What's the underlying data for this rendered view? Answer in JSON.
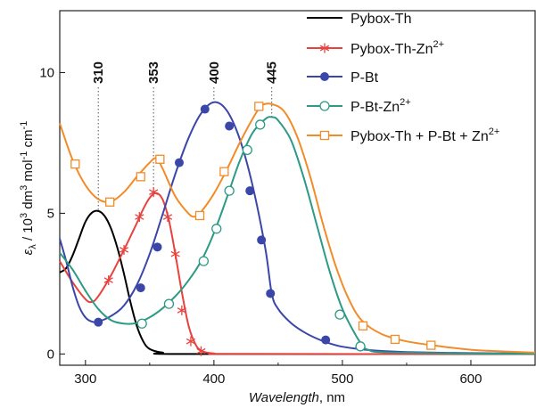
{
  "chart_data": {
    "type": "line",
    "xlabel_italic": "Wavelength",
    "xlabel_unit": ", nm",
    "ylabel": {
      "symbol": "ε",
      "sub": "λ",
      "pre": " / 10",
      "e1": "3",
      "mid1": " dm",
      "e2": "3",
      "mid2": " mol",
      "e3": "-1",
      "mid3": " cm",
      "e4": "-1"
    },
    "xlim": [
      280,
      650
    ],
    "ylim": [
      -0.4,
      12.2
    ],
    "xticks": [
      300,
      400,
      500,
      600
    ],
    "xtick_labels": [
      "300",
      "400",
      "500",
      "600"
    ],
    "yticks": [
      0,
      5,
      10
    ],
    "ytick_labels": [
      "0",
      "5",
      "10"
    ],
    "legend_position": "top-right",
    "peak_annotations": [
      {
        "x": 310,
        "y": 5.1,
        "label": "310"
      },
      {
        "x": 353,
        "y": 5.75,
        "label": "353"
      },
      {
        "x": 400,
        "y": 8.95,
        "label": "400"
      },
      {
        "x": 445,
        "y": 8.45,
        "label": "445"
      }
    ],
    "series": [
      {
        "name": "Pybox-Th",
        "name_sup": "",
        "name_tail": "",
        "color": "#000000",
        "marker": "none",
        "points": [
          [
            280,
            2.9
          ],
          [
            285,
            3.05
          ],
          [
            290,
            3.5
          ],
          [
            295,
            4.1
          ],
          [
            300,
            4.7
          ],
          [
            305,
            5.02
          ],
          [
            310,
            5.08
          ],
          [
            315,
            4.9
          ],
          [
            320,
            4.45
          ],
          [
            325,
            3.75
          ],
          [
            330,
            2.85
          ],
          [
            335,
            1.85
          ],
          [
            340,
            1.0
          ],
          [
            345,
            0.45
          ],
          [
            350,
            0.18
          ],
          [
            360,
            0.05
          ],
          [
            380,
            0.0
          ],
          [
            650,
            0.0
          ]
        ],
        "markers": []
      },
      {
        "name": "Pybox-Th-Zn",
        "name_sup": "2+",
        "name_tail": "",
        "color": "#e8423e",
        "marker": "star",
        "points": [
          [
            280,
            3.3
          ],
          [
            290,
            2.55
          ],
          [
            300,
            1.95
          ],
          [
            305,
            1.85
          ],
          [
            310,
            2.05
          ],
          [
            320,
            2.8
          ],
          [
            330,
            3.7
          ],
          [
            340,
            4.65
          ],
          [
            345,
            5.15
          ],
          [
            350,
            5.55
          ],
          [
            355,
            5.72
          ],
          [
            360,
            5.5
          ],
          [
            365,
            4.75
          ],
          [
            370,
            3.55
          ],
          [
            375,
            2.2
          ],
          [
            380,
            1.05
          ],
          [
            385,
            0.4
          ],
          [
            390,
            0.12
          ],
          [
            400,
            0.02
          ],
          [
            420,
            0.0
          ],
          [
            650,
            0.0
          ]
        ],
        "markers": [
          [
            318,
            2.62
          ],
          [
            330,
            3.7
          ],
          [
            342,
            4.87
          ],
          [
            353,
            5.75
          ],
          [
            364,
            4.87
          ],
          [
            370,
            3.55
          ],
          [
            375,
            1.55
          ],
          [
            382,
            0.45
          ],
          [
            390,
            0.1
          ]
        ]
      },
      {
        "name": "P-Bt",
        "name_sup": "",
        "name_tail": "",
        "color": "#3a46a8",
        "marker": "filled-circle",
        "points": [
          [
            280,
            4.1
          ],
          [
            285,
            3.3
          ],
          [
            290,
            2.4
          ],
          [
            295,
            1.7
          ],
          [
            300,
            1.3
          ],
          [
            305,
            1.15
          ],
          [
            310,
            1.15
          ],
          [
            320,
            1.35
          ],
          [
            330,
            1.72
          ],
          [
            340,
            2.45
          ],
          [
            350,
            3.55
          ],
          [
            360,
            4.95
          ],
          [
            370,
            6.4
          ],
          [
            380,
            7.65
          ],
          [
            390,
            8.55
          ],
          [
            400,
            8.95
          ],
          [
            410,
            8.65
          ],
          [
            420,
            7.65
          ],
          [
            430,
            6.0
          ],
          [
            440,
            3.75
          ],
          [
            445,
            2.15
          ],
          [
            450,
            1.6
          ],
          [
            460,
            1.1
          ],
          [
            470,
            0.78
          ],
          [
            480,
            0.55
          ],
          [
            490,
            0.38
          ],
          [
            500,
            0.26
          ],
          [
            520,
            0.14
          ],
          [
            550,
            0.07
          ],
          [
            600,
            0.03
          ],
          [
            650,
            0.02
          ]
        ],
        "markers": [
          [
            310,
            1.13
          ],
          [
            343,
            2.35
          ],
          [
            356,
            3.8
          ],
          [
            373,
            6.8
          ],
          [
            393,
            8.7
          ],
          [
            412,
            8.1
          ],
          [
            428,
            5.8
          ],
          [
            437,
            4.05
          ],
          [
            444,
            2.15
          ],
          [
            487,
            0.5
          ]
        ]
      },
      {
        "name": "P-Bt-Zn",
        "name_sup": "2+",
        "name_tail": "",
        "color": "#2c9a84",
        "marker": "open-circle",
        "points": [
          [
            280,
            3.6
          ],
          [
            290,
            3.0
          ],
          [
            300,
            2.25
          ],
          [
            310,
            1.6
          ],
          [
            320,
            1.2
          ],
          [
            330,
            1.08
          ],
          [
            340,
            1.1
          ],
          [
            350,
            1.3
          ],
          [
            360,
            1.62
          ],
          [
            370,
            2.05
          ],
          [
            380,
            2.6
          ],
          [
            390,
            3.3
          ],
          [
            400,
            4.3
          ],
          [
            410,
            5.55
          ],
          [
            420,
            6.85
          ],
          [
            430,
            7.85
          ],
          [
            440,
            8.35
          ],
          [
            445,
            8.42
          ],
          [
            450,
            8.3
          ],
          [
            460,
            7.6
          ],
          [
            470,
            6.25
          ],
          [
            480,
            4.6
          ],
          [
            490,
            2.95
          ],
          [
            500,
            1.6
          ],
          [
            510,
            0.7
          ],
          [
            515,
            0.35
          ],
          [
            520,
            0.15
          ],
          [
            540,
            0.05
          ],
          [
            650,
            0.0
          ]
        ],
        "markers": [
          [
            344,
            1.08
          ],
          [
            365,
            1.78
          ],
          [
            392,
            3.3
          ],
          [
            402,
            4.45
          ],
          [
            412,
            5.8
          ],
          [
            426,
            7.25
          ],
          [
            436,
            8.15
          ],
          [
            498,
            1.4
          ],
          [
            514,
            0.27
          ]
        ]
      },
      {
        "name": "Pybox-Th + P-Bt + Zn",
        "name_sup": "2+",
        "name_tail": "",
        "color": "#f28c28",
        "marker": "open-square",
        "points": [
          [
            280,
            8.2
          ],
          [
            290,
            6.9
          ],
          [
            300,
            6.0
          ],
          [
            310,
            5.5
          ],
          [
            320,
            5.42
          ],
          [
            330,
            5.75
          ],
          [
            340,
            6.3
          ],
          [
            350,
            6.8
          ],
          [
            355,
            6.95
          ],
          [
            360,
            6.6
          ],
          [
            370,
            5.6
          ],
          [
            380,
            5.0
          ],
          [
            385,
            4.88
          ],
          [
            390,
            5.05
          ],
          [
            400,
            5.7
          ],
          [
            410,
            6.55
          ],
          [
            420,
            7.5
          ],
          [
            430,
            8.35
          ],
          [
            437,
            8.82
          ],
          [
            445,
            8.88
          ],
          [
            455,
            8.6
          ],
          [
            465,
            7.7
          ],
          [
            475,
            6.3
          ],
          [
            485,
            4.6
          ],
          [
            495,
            3.1
          ],
          [
            505,
            1.95
          ],
          [
            515,
            1.2
          ],
          [
            530,
            0.72
          ],
          [
            550,
            0.45
          ],
          [
            575,
            0.28
          ],
          [
            600,
            0.15
          ],
          [
            630,
            0.08
          ],
          [
            650,
            0.05
          ]
        ],
        "markers": [
          [
            292,
            6.75
          ],
          [
            319,
            5.4
          ],
          [
            343,
            6.3
          ],
          [
            358,
            6.92
          ],
          [
            389,
            4.92
          ],
          [
            408,
            6.48
          ],
          [
            435,
            8.8
          ],
          [
            516,
            1.0
          ],
          [
            541,
            0.52
          ],
          [
            569,
            0.31
          ]
        ]
      }
    ]
  }
}
